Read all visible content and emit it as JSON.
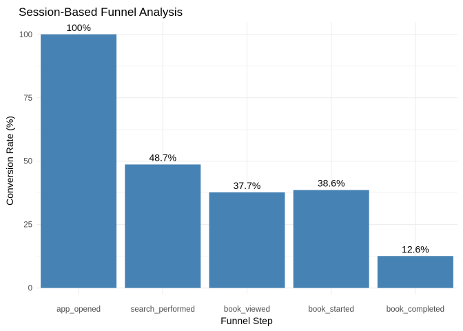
{
  "chart_data": {
    "type": "bar",
    "title": "Session-Based Funnel Analysis",
    "xlabel": "Funnel Step",
    "ylabel": "Conversion Rate (%)",
    "categories": [
      "app_opened",
      "search_performed",
      "book_viewed",
      "book_started",
      "book_completed"
    ],
    "values": [
      100,
      48.7,
      37.7,
      38.6,
      12.6
    ],
    "data_labels": [
      "100%",
      "48.7%",
      "37.7%",
      "38.6%",
      "12.6%"
    ],
    "ylim": [
      0,
      100
    ],
    "yticks": [
      0,
      25,
      50,
      75,
      100
    ],
    "grid": true,
    "legend": "none",
    "colors": {
      "bar": "#4682B4",
      "grid_major": "#ebebeb",
      "grid_minor": "#f5f5f5"
    }
  }
}
